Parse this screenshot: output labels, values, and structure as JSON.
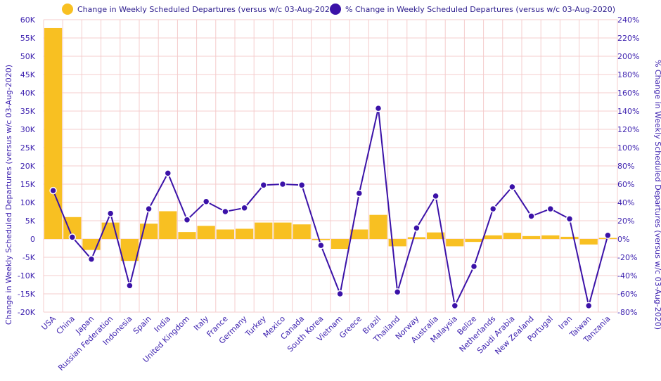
{
  "chart_data": {
    "type": "bar+line",
    "legend": {
      "bar": "Change in Weekly Scheduled Departures (versus w/c 03-Aug-2020)",
      "line": "% Change in Weekly Scheduled Departures (versus w/c 03-Aug-2020)"
    },
    "ylabel_left": "Change in Weekly Scheduled Departures (versus w/c 03-Aug-2020)",
    "ylabel_right": "% Change in Weekly Scheduled Departures (versus w/c 03-Aug-2020)",
    "ylim_left": [
      -20000,
      60000
    ],
    "ylim_right": [
      -80,
      240
    ],
    "yticks_left": [
      "-20K",
      "-15K",
      "-10K",
      "-5K",
      "0",
      "5K",
      "10K",
      "15K",
      "20K",
      "25K",
      "30K",
      "35K",
      "40K",
      "45K",
      "50K",
      "55K",
      "60K"
    ],
    "yticks_right": [
      "-80%",
      "-60%",
      "-40%",
      "-20%",
      "0%",
      "20%",
      "40%",
      "60%",
      "80%",
      "100%",
      "120%",
      "140%",
      "160%",
      "180%",
      "200%",
      "220%",
      "240%"
    ],
    "categories": [
      "USA",
      "China",
      "Japan",
      "Russian Federation",
      "Indonesia",
      "Spain",
      "India",
      "United Kingdom",
      "Italy",
      "France",
      "Germany",
      "Turkey",
      "Mexico",
      "Canada",
      "South Korea",
      "Vietnam",
      "Greece",
      "Brazil",
      "Thailand",
      "Norway",
      "Australia",
      "Malaysia",
      "Belize",
      "Netherlands",
      "Saudi Arabia",
      "New Zealand",
      "Portugal",
      "Iran",
      "Taiwan",
      "Tanzania"
    ],
    "series": [
      {
        "name": "Change in Weekly Scheduled Departures (versus w/c 03-Aug-2020)",
        "type": "bar",
        "axis": "left",
        "color": "#f8c022",
        "values": [
          57700,
          6000,
          -3000,
          4500,
          -6000,
          4200,
          7600,
          1900,
          3600,
          2600,
          2800,
          4500,
          4500,
          4000,
          -300,
          -2700,
          2600,
          6600,
          -2000,
          500,
          1800,
          -2000,
          -800,
          1000,
          1700,
          800,
          1000,
          600,
          -1500,
          300
        ]
      },
      {
        "name": "% Change in Weekly Scheduled Departures (versus w/c 03-Aug-2020)",
        "type": "line",
        "axis": "right",
        "color": "#3b12a8",
        "values": [
          53,
          2,
          -22,
          28,
          -51,
          33,
          72,
          21,
          41,
          30,
          34,
          59,
          60,
          59,
          -7,
          -60,
          50,
          143,
          -58,
          12,
          47,
          -73,
          -30,
          33,
          57,
          25,
          33,
          22,
          -73,
          4
        ]
      }
    ],
    "grid": true
  }
}
